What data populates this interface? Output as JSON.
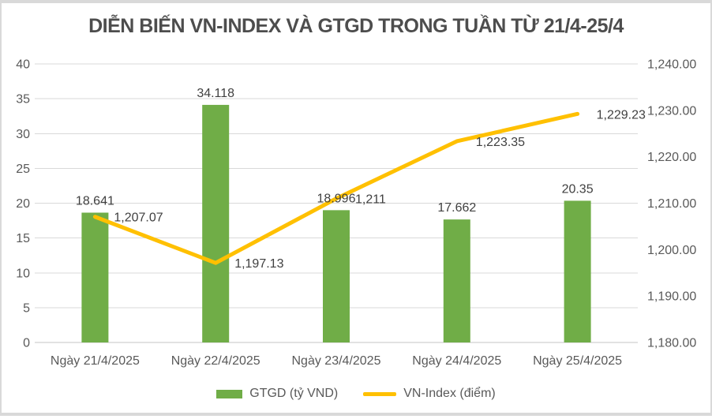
{
  "title": "DIỄN BIẾN VN-INDEX VÀ GTGD TRONG TUẦN TỪ 21/4-25/4",
  "chart_data": {
    "type": "combo-bar-line",
    "title": "DIỄN BIẾN VN-INDEX VÀ GTGD TRONG TUẦN TỪ 21/4-25/4",
    "categories": [
      "Ngày 21/4/2025",
      "Ngày 22/4/2025",
      "Ngày 23/4/2025",
      "Ngày 24/4/2025",
      "Ngày 25/4/2025"
    ],
    "series": [
      {
        "name": "GTGD (tỷ VND)",
        "type": "bar",
        "axis": "left",
        "color": "#70AD47",
        "values": [
          18.641,
          34.118,
          18.996,
          17.662,
          20.35
        ],
        "labels": [
          "18.641",
          "34.118",
          "18.996",
          "17.662",
          "20.35"
        ]
      },
      {
        "name": "VN-Index (điểm)",
        "type": "line",
        "axis": "right",
        "color": "#FFC000",
        "values": [
          1207.07,
          1197.13,
          1211,
          1223.35,
          1229.23
        ],
        "labels": [
          "1,207.07",
          "1,197.13",
          "1,211",
          "1,223.35",
          "1,229.23"
        ]
      }
    ],
    "left_axis": {
      "min": 0,
      "max": 40,
      "step": 5,
      "ticks": [
        "0",
        "5",
        "10",
        "15",
        "20",
        "25",
        "30",
        "35",
        "40"
      ]
    },
    "right_axis": {
      "min": 1180,
      "max": 1240,
      "step": 10,
      "ticks": [
        "1,180.00",
        "1,190.00",
        "1,200.00",
        "1,210.00",
        "1,220.00",
        "1,230.00",
        "1,240.00"
      ]
    },
    "grid": true,
    "legend_position": "bottom",
    "colors": {
      "bar": "#70AD47",
      "line": "#FFC000",
      "grid": "#D9D9D9",
      "axis_line": "#C6C6C6",
      "axis_text": "#595959",
      "data_label": "#404040",
      "title_text": "#4D4D4D"
    }
  }
}
